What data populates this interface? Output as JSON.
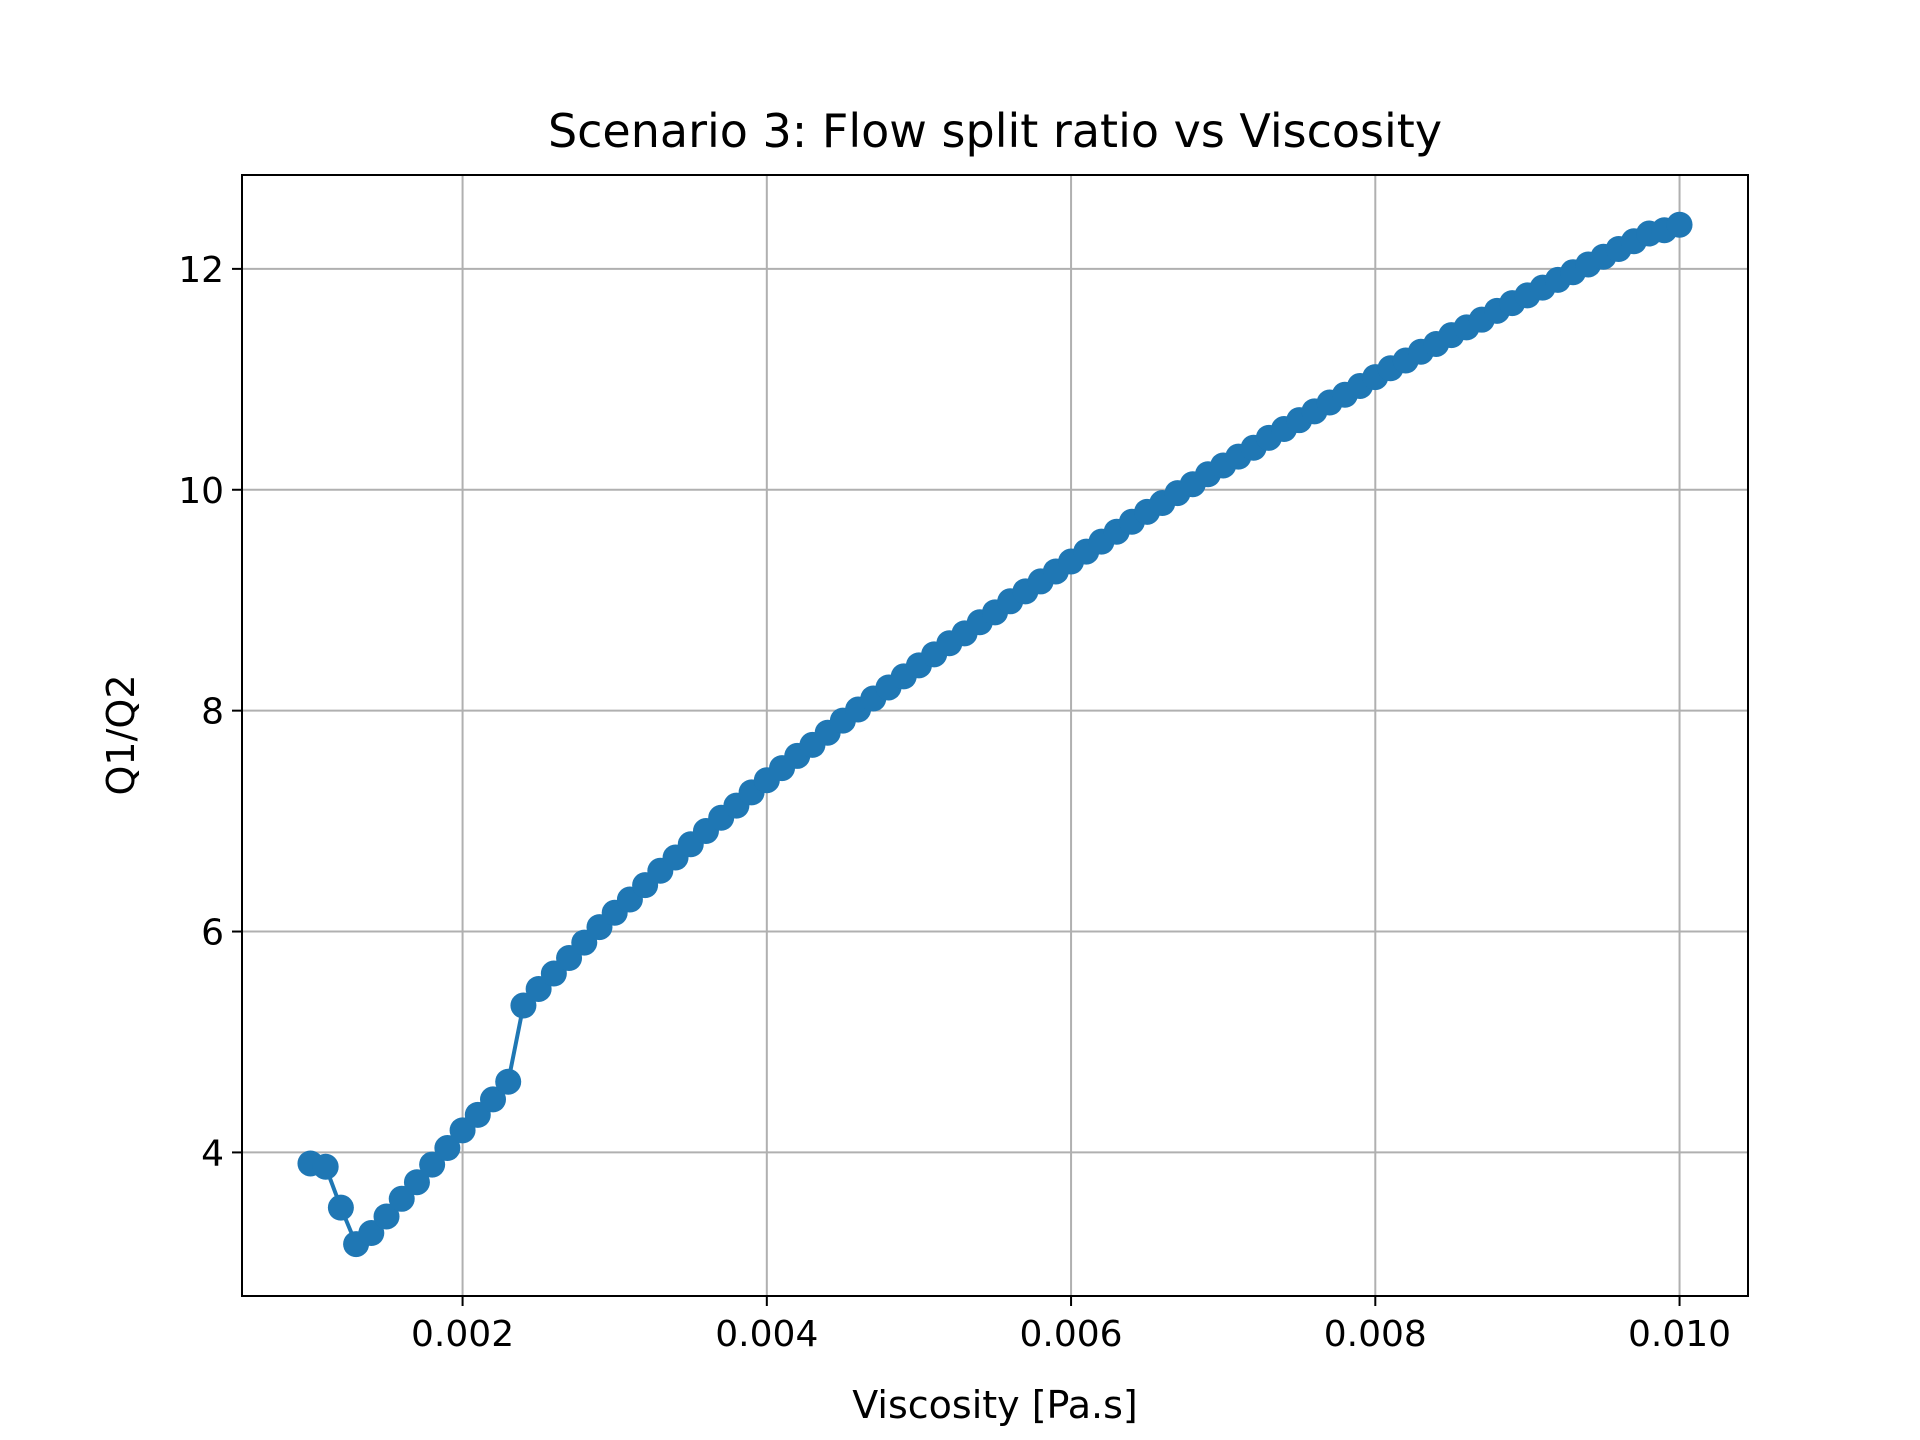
{
  "chart_data": {
    "type": "line",
    "title": "Scenario 3: Flow split ratio vs Viscosity",
    "xlabel": "Viscosity [Pa.s]",
    "ylabel": "Q1/Q2",
    "xlim": [
      0.00055,
      0.01045
    ],
    "ylim": [
      2.7,
      12.85
    ],
    "xticks": [
      0.002,
      0.004,
      0.006,
      0.008,
      0.01
    ],
    "xtick_labels": [
      "0.002",
      "0.004",
      "0.006",
      "0.008",
      "0.010"
    ],
    "yticks": [
      4,
      6,
      8,
      10,
      12
    ],
    "ytick_labels": [
      "4",
      "6",
      "8",
      "10",
      "12"
    ],
    "grid": true,
    "color": "#1f77b4",
    "series": [
      {
        "marker": "circle",
        "x": [
          0.001,
          0.0011,
          0.0012,
          0.0013,
          0.0014,
          0.0015,
          0.0016,
          0.0017,
          0.0018,
          0.0019,
          0.002,
          0.0021,
          0.0022,
          0.0023,
          0.0024,
          0.0025,
          0.0026,
          0.0027,
          0.0028,
          0.0029,
          0.003,
          0.0031,
          0.0032,
          0.0033,
          0.0034,
          0.0035,
          0.0036,
          0.0037,
          0.0038,
          0.0039,
          0.004,
          0.0041,
          0.0042,
          0.0043,
          0.0044,
          0.0045,
          0.0046,
          0.0047,
          0.0048,
          0.0049,
          0.005,
          0.0051,
          0.0052,
          0.0053,
          0.0054,
          0.0055,
          0.0056,
          0.0057,
          0.0058,
          0.0059,
          0.006,
          0.0061,
          0.0062,
          0.0063,
          0.0064,
          0.0065,
          0.0066,
          0.0067,
          0.0068,
          0.0069,
          0.007,
          0.0071,
          0.0072,
          0.0073,
          0.0074,
          0.0075,
          0.0076,
          0.0077,
          0.0078,
          0.0079,
          0.008,
          0.0081,
          0.0082,
          0.0083,
          0.0084,
          0.0085,
          0.0086,
          0.0087,
          0.0088,
          0.0089,
          0.009,
          0.0091,
          0.0092,
          0.0093,
          0.0094,
          0.0095,
          0.0096,
          0.0097,
          0.0098,
          0.0099,
          0.01
        ],
        "y": [
          3.9,
          3.87,
          3.5,
          3.17,
          3.27,
          3.42,
          3.58,
          3.73,
          3.89,
          4.04,
          4.2,
          4.34,
          4.48,
          4.64,
          5.33,
          5.48,
          5.62,
          5.76,
          5.9,
          6.04,
          6.17,
          6.29,
          6.42,
          6.55,
          6.67,
          6.79,
          6.91,
          7.03,
          7.14,
          7.26,
          7.37,
          7.48,
          7.59,
          7.69,
          7.8,
          7.91,
          8.01,
          8.11,
          8.21,
          8.31,
          8.41,
          8.51,
          8.61,
          8.7,
          8.8,
          8.89,
          8.99,
          9.08,
          9.17,
          9.26,
          9.35,
          9.44,
          9.53,
          9.62,
          9.71,
          9.8,
          9.88,
          9.97,
          10.05,
          10.14,
          10.22,
          10.3,
          10.38,
          10.47,
          10.55,
          10.63,
          10.71,
          10.79,
          10.86,
          10.94,
          11.02,
          11.1,
          11.17,
          11.25,
          11.32,
          11.4,
          11.47,
          11.54,
          11.62,
          11.69,
          11.76,
          11.83,
          11.9,
          11.97,
          12.04,
          12.11,
          12.18,
          12.25,
          12.32,
          12.35,
          12.4
        ]
      }
    ]
  }
}
